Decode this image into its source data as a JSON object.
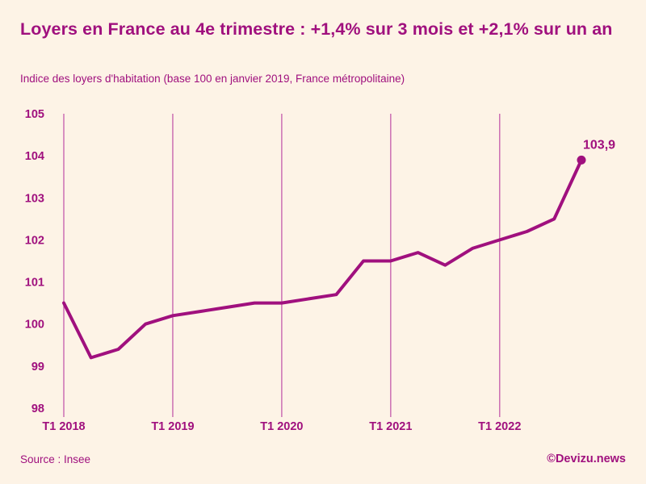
{
  "page": {
    "background_color": "#fdf3e6",
    "accent_color": "#a0107e",
    "gridline_color": "#c45aab"
  },
  "header": {
    "title": "Loyers en France au 4e trimestre : +1,4% sur 3 mois et +2,1% sur un an",
    "subtitle": "Indice des loyers d'habitation (base 100 en janvier 2019, France métropolitaine)"
  },
  "chart_data": {
    "type": "line",
    "title": "Indice des loyers d'habitation (base 100 en janvier 2019, France métropolitaine)",
    "categories": [
      "T1 2018",
      "T2 2018",
      "T3 2018",
      "T4 2018",
      "T1 2019",
      "T2 2019",
      "T3 2019",
      "T4 2019",
      "T1 2020",
      "T2 2020",
      "T3 2020",
      "T4 2020",
      "T1 2021",
      "T2 2021",
      "T3 2021",
      "T4 2021",
      "T1 2022",
      "T2 2022",
      "T3 2022",
      "T4 2022"
    ],
    "values": [
      100.5,
      99.2,
      99.4,
      100.0,
      100.2,
      100.3,
      100.4,
      100.5,
      100.5,
      100.6,
      100.7,
      101.5,
      101.5,
      101.7,
      101.4,
      101.8,
      102.0,
      102.2,
      102.5,
      103.9
    ],
    "x_tick_labels": [
      "T1 2018",
      "T1 2019",
      "T1 2020",
      "T1 2021",
      "T1 2022"
    ],
    "x_tick_indices": [
      0,
      4,
      8,
      12,
      16
    ],
    "yticks": [
      98,
      99,
      100,
      101,
      102,
      103,
      104,
      105
    ],
    "ylim": [
      98,
      105
    ],
    "grid": "vertical-only",
    "legend": "none",
    "last_value_label": "103,9"
  },
  "footer": {
    "source": "Source : Insee",
    "credit": "©Devizu.news"
  }
}
